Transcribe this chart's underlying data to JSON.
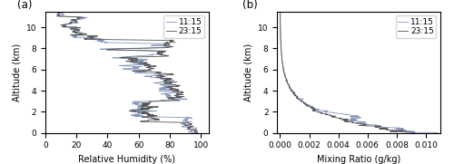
{
  "title_a": "(a)",
  "title_b": "(b)",
  "xlabel_a": "Relative Humidity (%)",
  "xlabel_b": "Mixing Ratio (g/kg)",
  "ylabel": "Altitude (km)",
  "xlim_a": [
    0,
    105
  ],
  "xlim_b": [
    -0.0002,
    0.011
  ],
  "ylim": [
    0,
    11.5
  ],
  "xticks_a": [
    0,
    20,
    40,
    60,
    80,
    100
  ],
  "xticks_b": [
    0.0,
    0.002,
    0.004,
    0.006,
    0.008,
    0.01
  ],
  "yticks": [
    0,
    2,
    4,
    6,
    8,
    10
  ],
  "legend_labels": [
    "11:15",
    "23:15"
  ],
  "color_blue": "#8899bb",
  "color_black": "#555555",
  "linewidth": 0.6,
  "figsize": [
    5.0,
    1.81
  ],
  "dpi": 100
}
